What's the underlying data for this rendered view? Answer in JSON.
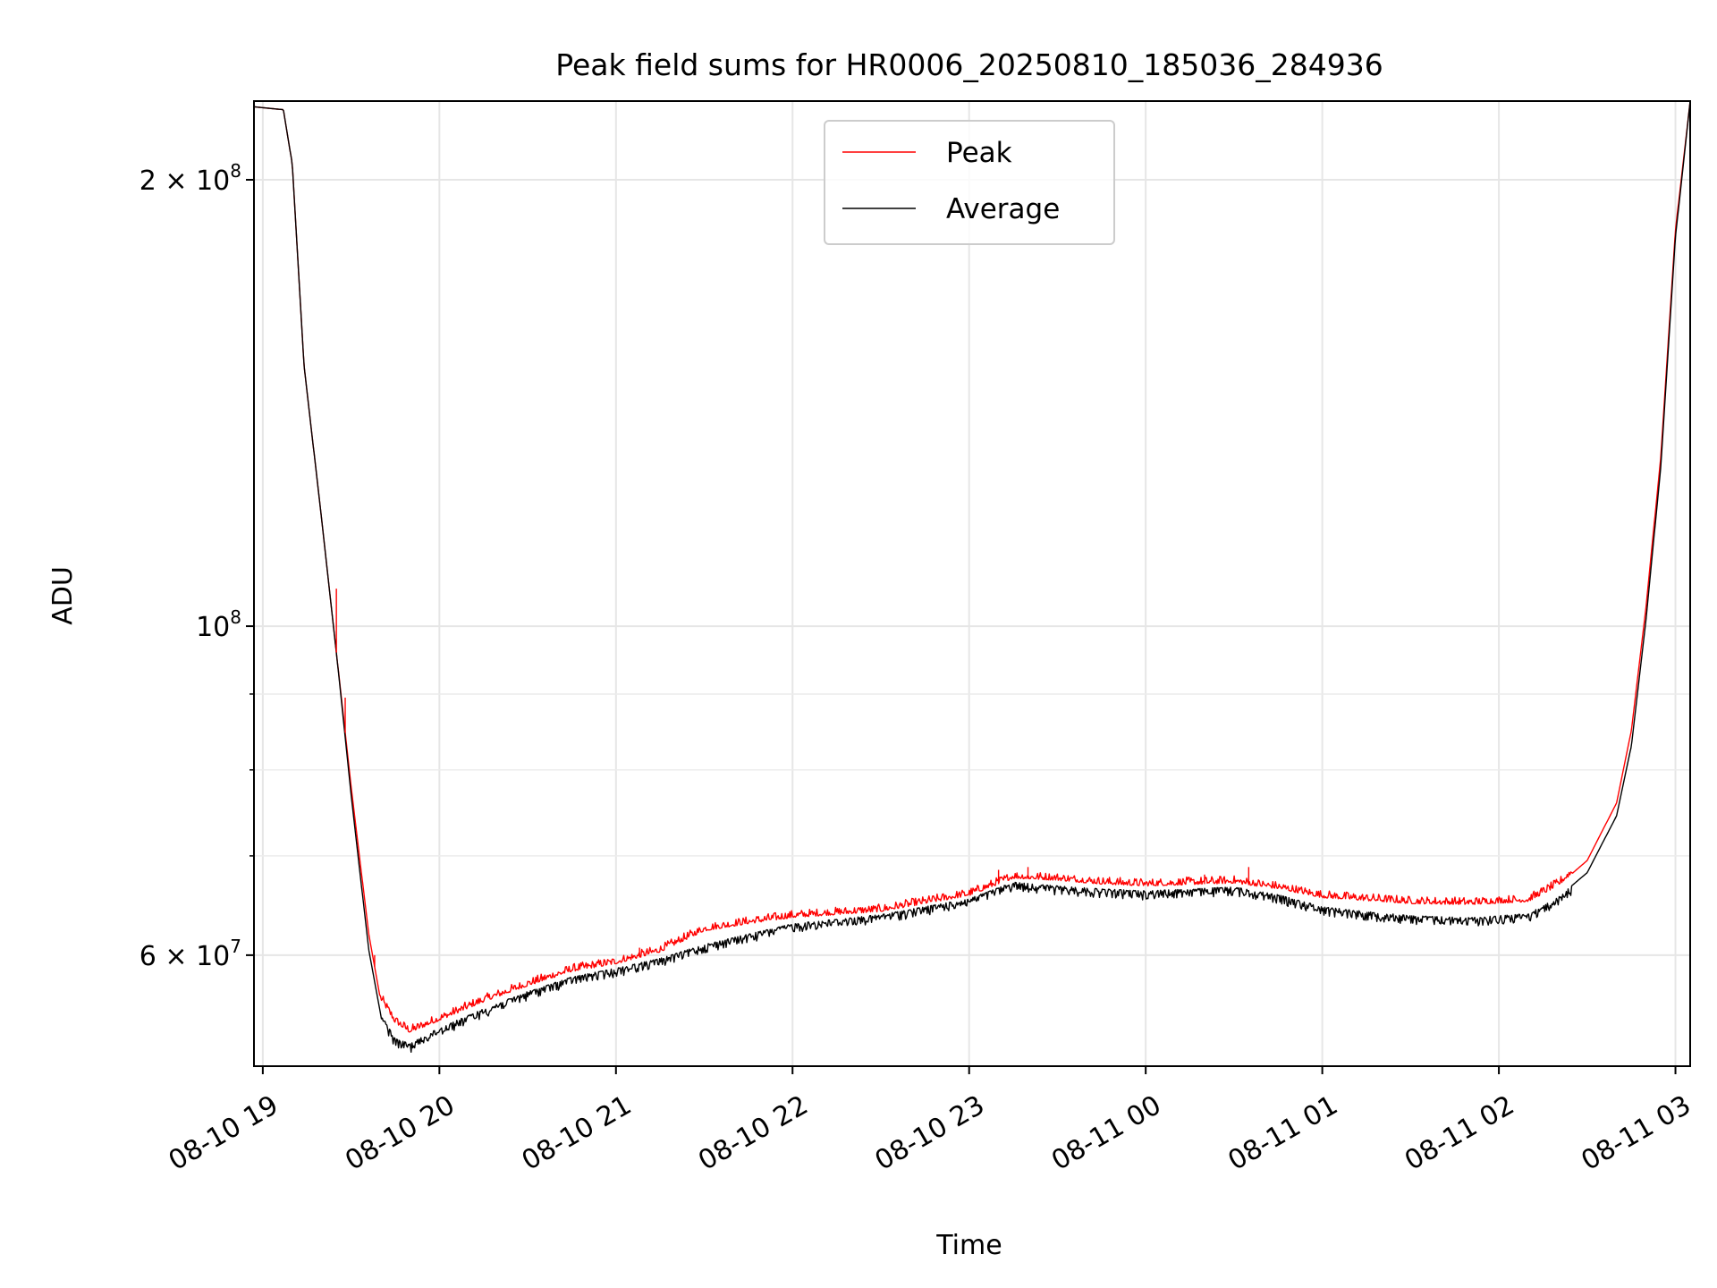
{
  "chart_data": {
    "type": "line",
    "title": "Peak field sums for HR0006_20250810_185036_284936",
    "xlabel": "Time",
    "ylabel": "ADU",
    "y_scale": "log",
    "ylim": [
      50500000,
      226000000
    ],
    "xlim": [
      "2025-08-10 18:57",
      "2025-08-11 03:05"
    ],
    "grid": true,
    "legend_position": "top-center",
    "x_ticks": [
      {
        "t": "2025-08-10 19:00",
        "label": "08-10 19"
      },
      {
        "t": "2025-08-10 20:00",
        "label": "08-10 20"
      },
      {
        "t": "2025-08-10 21:00",
        "label": "08-10 21"
      },
      {
        "t": "2025-08-10 22:00",
        "label": "08-10 22"
      },
      {
        "t": "2025-08-10 23:00",
        "label": "08-10 23"
      },
      {
        "t": "2025-08-11 00:00",
        "label": "08-11 00"
      },
      {
        "t": "2025-08-11 01:00",
        "label": "08-11 01"
      },
      {
        "t": "2025-08-11 02:00",
        "label": "08-11 02"
      },
      {
        "t": "2025-08-11 03:00",
        "label": "08-11 03"
      }
    ],
    "y_ticks": [
      {
        "value": 200000000,
        "mantissa": "2",
        "base": "10",
        "exp": "8"
      },
      {
        "value": 100000000,
        "mantissa": "",
        "base": "10",
        "exp": "8"
      },
      {
        "value": 60000000,
        "mantissa": "6",
        "base": "10",
        "exp": "7"
      }
    ],
    "y_minor_gridlines": [
      70000000,
      80000000,
      90000000
    ],
    "series": [
      {
        "name": "Peak",
        "color": "#ff0000",
        "noise_direction": "up",
        "points": [
          [
            "2025-08-10 18:57",
            224000000
          ],
          [
            "2025-08-10 19:07",
            223000000
          ],
          [
            "2025-08-10 19:10",
            205000000
          ],
          [
            "2025-08-10 19:14",
            150000000
          ],
          [
            "2025-08-10 19:20",
            118000000
          ],
          [
            "2025-08-10 19:25",
            96000000
          ],
          [
            "2025-08-10 19:30",
            78000000
          ],
          [
            "2025-08-10 19:36",
            62000000
          ],
          [
            "2025-08-10 19:40",
            56000000
          ],
          [
            "2025-08-10 19:45",
            54000000
          ],
          [
            "2025-08-10 19:50",
            53200000
          ],
          [
            "2025-08-10 20:00",
            54200000
          ],
          [
            "2025-08-10 20:15",
            55800000
          ],
          [
            "2025-08-10 20:30",
            57200000
          ],
          [
            "2025-08-10 20:45",
            58500000
          ],
          [
            "2025-08-10 21:00",
            59200000
          ],
          [
            "2025-08-10 21:15",
            60300000
          ],
          [
            "2025-08-10 21:30",
            62300000
          ],
          [
            "2025-08-10 21:45",
            63000000
          ],
          [
            "2025-08-10 22:00",
            63600000
          ],
          [
            "2025-08-10 22:30",
            64200000
          ],
          [
            "2025-08-10 23:00",
            65800000
          ],
          [
            "2025-08-10 23:15",
            67600000
          ],
          [
            "2025-08-10 23:30",
            67400000
          ],
          [
            "2025-08-10 23:45",
            67000000
          ],
          [
            "2025-08-11 00:00",
            66800000
          ],
          [
            "2025-08-11 00:30",
            67100000
          ],
          [
            "2025-08-11 00:45",
            66500000
          ],
          [
            "2025-08-11 01:00",
            65600000
          ],
          [
            "2025-08-11 01:15",
            65300000
          ],
          [
            "2025-08-11 01:30",
            65000000
          ],
          [
            "2025-08-11 01:50",
            64900000
          ],
          [
            "2025-08-11 02:10",
            65200000
          ],
          [
            "2025-08-11 02:20",
            66800000
          ],
          [
            "2025-08-11 02:30",
            69500000
          ],
          [
            "2025-08-11 02:40",
            76000000
          ],
          [
            "2025-08-11 02:45",
            85000000
          ],
          [
            "2025-08-11 02:50",
            103000000
          ],
          [
            "2025-08-11 02:55",
            130000000
          ],
          [
            "2025-08-11 03:00",
            185000000
          ],
          [
            "2025-08-11 03:05",
            226000000
          ]
        ]
      },
      {
        "name": "Average",
        "color": "#000000",
        "noise_direction": "down",
        "points": [
          [
            "2025-08-10 18:57",
            224000000
          ],
          [
            "2025-08-10 19:07",
            223000000
          ],
          [
            "2025-08-10 19:10",
            205000000
          ],
          [
            "2025-08-10 19:14",
            150000000
          ],
          [
            "2025-08-10 19:20",
            118000000
          ],
          [
            "2025-08-10 19:25",
            96000000
          ],
          [
            "2025-08-10 19:30",
            77000000
          ],
          [
            "2025-08-10 19:36",
            60500000
          ],
          [
            "2025-08-10 19:40",
            54800000
          ],
          [
            "2025-08-10 19:45",
            52700000
          ],
          [
            "2025-08-10 19:50",
            52300000
          ],
          [
            "2025-08-10 20:00",
            53600000
          ],
          [
            "2025-08-10 20:15",
            55200000
          ],
          [
            "2025-08-10 20:30",
            56700000
          ],
          [
            "2025-08-10 20:45",
            58000000
          ],
          [
            "2025-08-10 21:00",
            58800000
          ],
          [
            "2025-08-10 21:15",
            59700000
          ],
          [
            "2025-08-10 21:30",
            61000000
          ],
          [
            "2025-08-10 21:45",
            62000000
          ],
          [
            "2025-08-10 22:00",
            63000000
          ],
          [
            "2025-08-10 22:30",
            63900000
          ],
          [
            "2025-08-10 23:00",
            65500000
          ],
          [
            "2025-08-10 23:15",
            67200000
          ],
          [
            "2025-08-10 23:30",
            66800000
          ],
          [
            "2025-08-10 23:45",
            66500000
          ],
          [
            "2025-08-11 00:00",
            66300000
          ],
          [
            "2025-08-11 00:30",
            66700000
          ],
          [
            "2025-08-11 00:45",
            65900000
          ],
          [
            "2025-08-11 01:00",
            64700000
          ],
          [
            "2025-08-11 01:15",
            64200000
          ],
          [
            "2025-08-11 01:30",
            63800000
          ],
          [
            "2025-08-11 01:50",
            63600000
          ],
          [
            "2025-08-11 02:10",
            64000000
          ],
          [
            "2025-08-11 02:20",
            65600000
          ],
          [
            "2025-08-11 02:30",
            68200000
          ],
          [
            "2025-08-11 02:40",
            74500000
          ],
          [
            "2025-08-11 02:45",
            83000000
          ],
          [
            "2025-08-11 02:50",
            101000000
          ],
          [
            "2025-08-11 02:55",
            128000000
          ],
          [
            "2025-08-11 03:00",
            183000000
          ],
          [
            "2025-08-11 03:05",
            226000000
          ]
        ]
      }
    ],
    "spikes": [
      [
        "2025-08-10 19:25",
        106000000
      ],
      [
        "2025-08-10 19:28",
        89500000
      ],
      [
        "2025-08-10 19:38",
        60000000
      ],
      [
        "2025-08-10 21:08",
        60700000
      ],
      [
        "2025-08-10 23:10",
        68500000
      ],
      [
        "2025-08-10 23:20",
        68800000
      ],
      [
        "2025-08-11 00:20",
        68000000
      ],
      [
        "2025-08-11 00:35",
        68800000
      ]
    ]
  }
}
